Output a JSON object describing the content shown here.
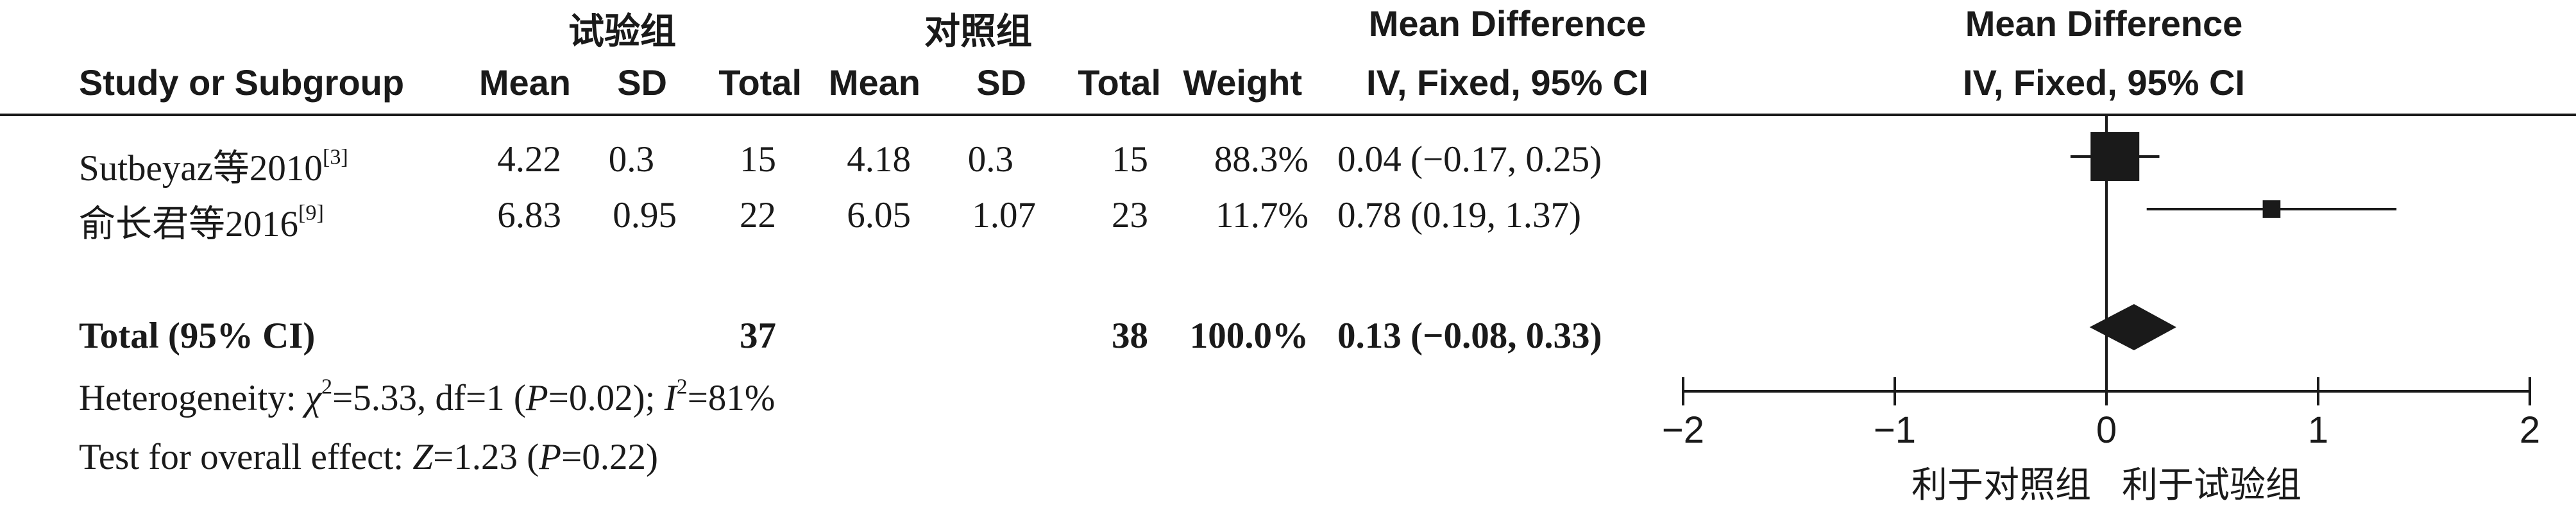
{
  "header": {
    "group_exp": "试验组",
    "group_ctrl": "对照组",
    "md_title": "Mean Difference",
    "md_method": "IV, Fixed, 95% CI",
    "plot_title": "Mean Difference",
    "plot_method": "IV, Fixed, 95% CI",
    "col_study": "Study or Subgroup",
    "col_mean_exp": "Mean",
    "col_sd_exp": "SD",
    "col_total_exp": "Total",
    "col_mean_ctrl": "Mean",
    "col_sd_ctrl": "SD",
    "col_total_ctrl": "Total",
    "col_weight": "Weight",
    "col_ci": "IV, Fixed, 95% CI"
  },
  "studies": [
    {
      "name": "Sutbeyaz等2010",
      "ref": "[3]",
      "mean_exp": "4.22",
      "sd_exp": "0.3",
      "total_exp": "15",
      "mean_ctrl": "4.18",
      "sd_ctrl": "0.3",
      "total_ctrl": "15",
      "weight": "88.3%",
      "ci_text": "0.04 (−0.17, 0.25)"
    },
    {
      "name": "俞长君等2016",
      "ref": "[9]",
      "mean_exp": "6.83",
      "sd_exp": "0.95",
      "total_exp": "22",
      "mean_ctrl": "6.05",
      "sd_ctrl": "1.07",
      "total_ctrl": "23",
      "weight": "11.7%",
      "ci_text": "0.78 (0.19, 1.37)"
    }
  ],
  "total": {
    "label": "Total (95% CI)",
    "total_exp": "37",
    "total_ctrl": "38",
    "weight": "100.0%",
    "ci_text": "0.13 (−0.08, 0.33)"
  },
  "footer": {
    "heterogeneity_prefix": "Heterogeneity: ",
    "chi_symbol": "χ",
    "chi_sup": "2",
    "heterogeneity_mid": "=5.33, df=1 (",
    "p_symbol": "P",
    "heterogeneity_p": "=0.02); ",
    "i_symbol": "I",
    "i_sup": "2",
    "heterogeneity_i": "=81%",
    "overall_prefix": "Test for overall effect: ",
    "z_symbol": "Z",
    "overall_z": "=1.23 (",
    "overall_p_symbol": "P",
    "overall_p": "=0.22)"
  },
  "chart_data": {
    "type": "forest",
    "title": "Mean Difference",
    "subtitle": "IV, Fixed, 95% CI",
    "xlim": [
      -2,
      2
    ],
    "ticks": [
      -2,
      -1,
      0,
      1,
      2
    ],
    "tick_labels": [
      "−2",
      "−1",
      "0",
      "1",
      "2"
    ],
    "favours_left": "利于对照组",
    "favours_right": "利于试验组",
    "studies": [
      {
        "name": "Sutbeyaz等2010",
        "md": 0.04,
        "lower": -0.17,
        "upper": 0.25,
        "weight": 88.3
      },
      {
        "name": "俞长君等2016",
        "md": 0.78,
        "lower": 0.19,
        "upper": 1.37,
        "weight": 11.7
      }
    ],
    "pooled": {
      "md": 0.13,
      "lower": -0.08,
      "upper": 0.33
    }
  }
}
